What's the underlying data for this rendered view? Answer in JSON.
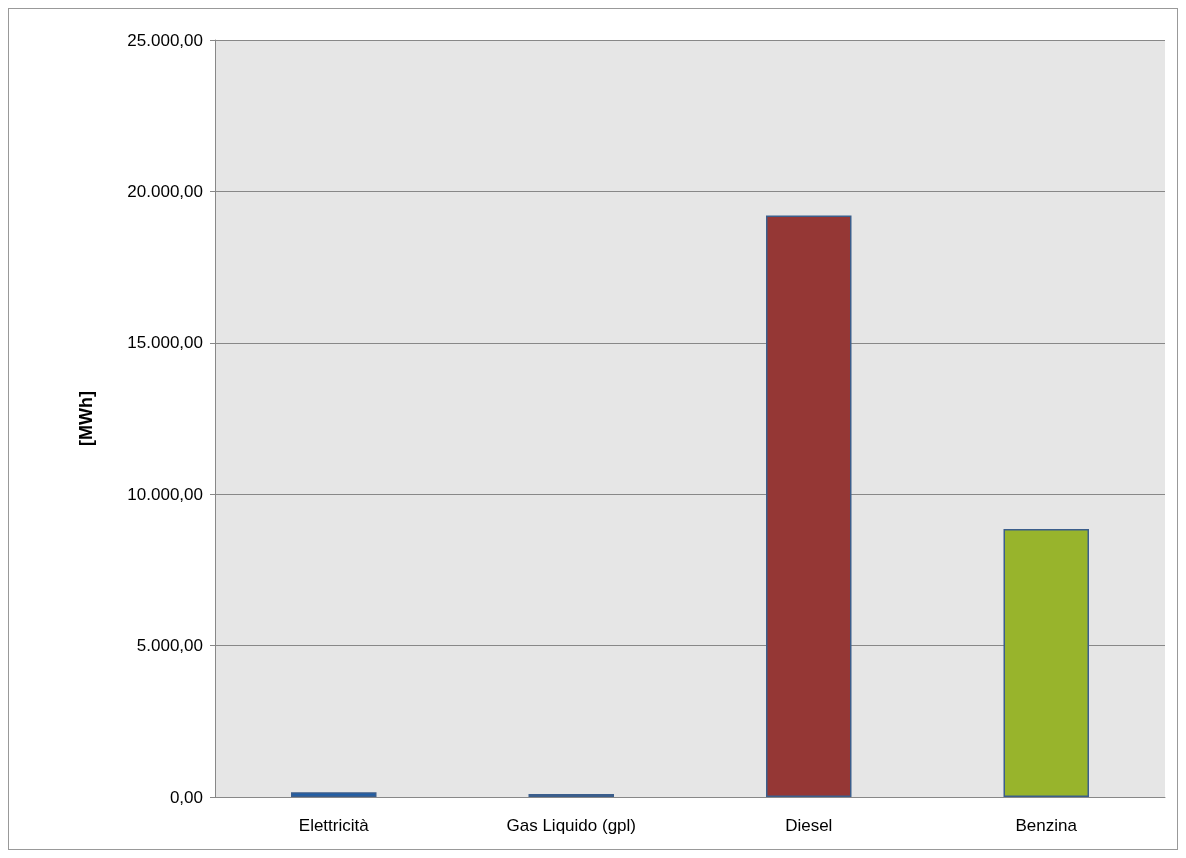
{
  "chart_data": {
    "type": "bar",
    "ylabel": "[MWh]",
    "categories": [
      "Elettricità",
      "Gas Liquido (gpl)",
      "Diesel",
      "Benzina"
    ],
    "values": [
      160,
      100,
      19200,
      8850
    ],
    "colors": [
      "#1f5fa8",
      "#b8a840",
      "#953735",
      "#98b42c"
    ],
    "ylim": [
      0,
      25000
    ],
    "yticks": [
      {
        "value": 0,
        "label": "0,00"
      },
      {
        "value": 5000,
        "label": "5.000,00"
      },
      {
        "value": 10000,
        "label": "10.000,00"
      },
      {
        "value": 15000,
        "label": "15.000,00"
      },
      {
        "value": 20000,
        "label": "20.000,00"
      },
      {
        "value": 25000,
        "label": "25.000,00"
      }
    ],
    "grid": "y"
  }
}
